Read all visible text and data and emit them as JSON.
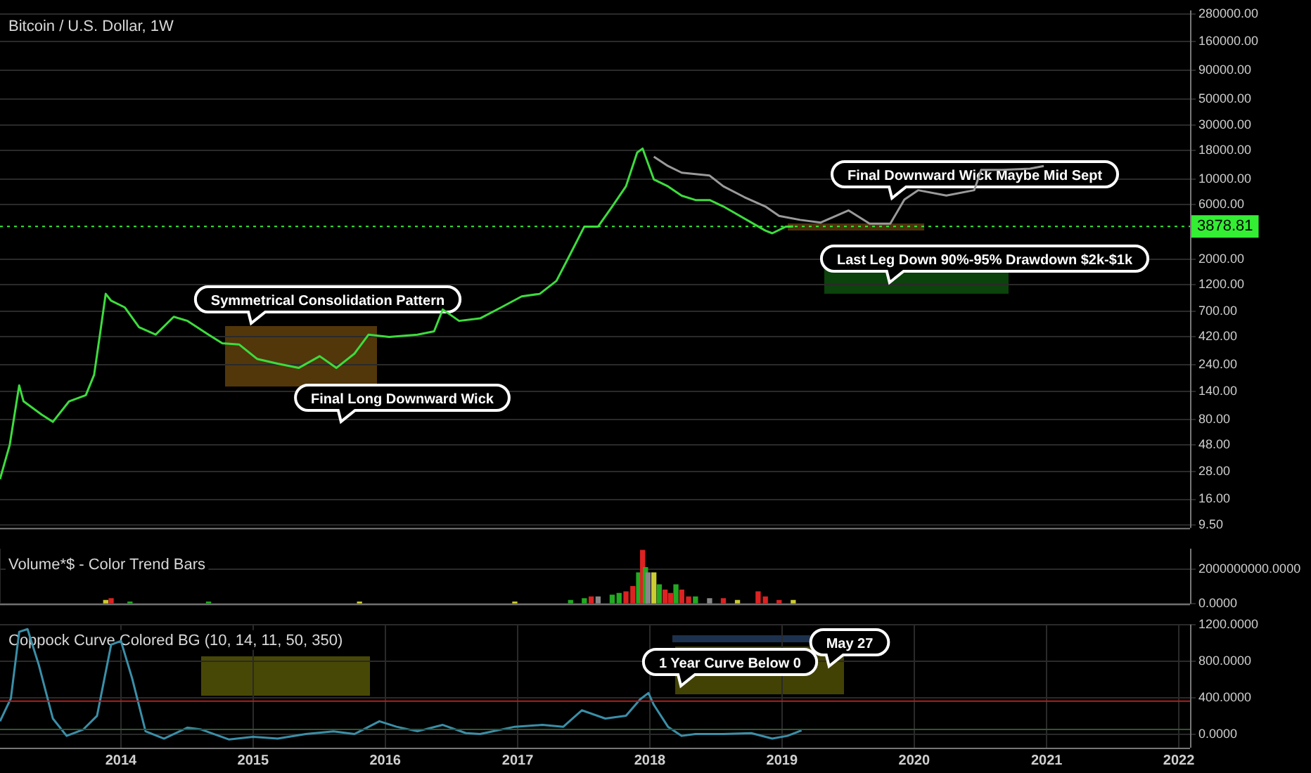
{
  "chart_data": [
    {
      "type": "line",
      "title": "Bitcoin / U.S. Dollar, 1W",
      "log": "y",
      "grid": true,
      "legend": false,
      "tick_labels": "y",
      "xlim": [
        "2013-02-01",
        "2022-02-01"
      ],
      "ylim": [
        9,
        300000
      ],
      "yticks": [
        {
          "value": 9.5,
          "label": "9.50"
        },
        {
          "value": 16,
          "label": "16.00"
        },
        {
          "value": 28,
          "label": "28.00"
        },
        {
          "value": 48,
          "label": "48.00"
        },
        {
          "value": 80,
          "label": "80.00"
        },
        {
          "value": 140,
          "label": "140.00"
        },
        {
          "value": 240,
          "label": "240.00"
        },
        {
          "value": 420,
          "label": "420.00"
        },
        {
          "value": 700,
          "label": "700.00"
        },
        {
          "value": 1200,
          "label": "1200.00"
        },
        {
          "value": 2000,
          "label": "2000.00"
        },
        {
          "value": 6000,
          "label": "6000.00"
        },
        {
          "value": 10000,
          "label": "10000.00"
        },
        {
          "value": 18000,
          "label": "18000.00"
        },
        {
          "value": 30000,
          "label": "30000.00"
        },
        {
          "value": 50000,
          "label": "50000.00"
        },
        {
          "value": 90000,
          "label": "90000.00"
        },
        {
          "value": 160000,
          "label": "160000.00"
        },
        {
          "value": 280000,
          "label": "280000.00"
        }
      ],
      "ref_lines": [
        {
          "axis": "y",
          "value": 3878.81,
          "label": "3878.81",
          "color": "#33ee33",
          "line_style": "dotted"
        }
      ],
      "annotations": [
        "Symmetrical Consolidation Pattern",
        "Final Long Downward Wick",
        "Final Downward Wick Maybe Mid Sept",
        "Last Leg Down 90%-95% Drawdown $2k-$1k"
      ],
      "series": [
        {
          "color": "#3ddc3d",
          "x": [
            "2013-02-01",
            "2013-02-28",
            "2013-03-26",
            "2013-04-07",
            "2013-05-27",
            "2013-06-27",
            "2013-08-11",
            "2013-09-26",
            "2013-10-19",
            "2013-11-04",
            "2013-11-20",
            "2013-12-05",
            "2014-01-12",
            "2014-02-20",
            "2014-04-07",
            "2014-05-27",
            "2014-07-04",
            "2014-08-31",
            "2014-10-08",
            "2014-11-24",
            "2015-01-12",
            "2015-03-10",
            "2015-05-07",
            "2015-07-04",
            "2015-08-19",
            "2015-10-08",
            "2015-11-16",
            "2016-01-12",
            "2016-03-30",
            "2016-05-15",
            "2016-06-08",
            "2016-07-23",
            "2016-09-19",
            "2016-11-16",
            "2017-01-12",
            "2017-03-03",
            "2017-04-18",
            "2017-05-27",
            "2017-07-04",
            "2017-08-11",
            "2017-09-19",
            "2017-10-27",
            "2017-11-27",
            "2017-12-12",
            "2018-01-12",
            "2018-02-20",
            "2018-03-30",
            "2018-05-07",
            "2018-06-15",
            "2018-07-23",
            "2018-11-16",
            "2018-12-05",
            "2019-01-12",
            "2019-02-01"
          ],
          "values": [
            24,
            48,
            158,
            115,
            88,
            76,
            115,
            130,
            196,
            440,
            1000,
            870,
            760,
            510,
            440,
            630,
            580,
            440,
            370,
            360,
            270,
            245,
            225,
            285,
            225,
            300,
            440,
            420,
            440,
            470,
            730,
            580,
            610,
            760,
            950,
            1000,
            1300,
            2250,
            3870,
            3870,
            5800,
            8700,
            17200,
            18600,
            10000,
            8700,
            7200,
            6600,
            6600,
            5800,
            3570,
            3380,
            3870,
            3880
          ]
        },
        {
          "color": "#9a9a9a",
          "x": [
            "2018-01-12",
            "2018-02-20",
            "2018-03-30",
            "2018-06-15",
            "2018-07-23",
            "2018-09-19",
            "2018-11-16",
            "2018-12-24",
            "2019-02-20",
            "2019-04-18",
            "2019-07-04",
            "2019-08-31",
            "2019-10-27",
            "2019-12-05",
            "2020-01-12",
            "2020-03-30",
            "2020-06-15",
            "2020-07-04",
            "2020-08-31",
            "2020-11-16",
            "2020-12-24"
          ],
          "values": [
            15800,
            13100,
            11450,
            10800,
            8700,
            7000,
            5800,
            4800,
            4430,
            4200,
            5360,
            4100,
            4100,
            6660,
            8050,
            7220,
            8050,
            12100,
            12100,
            12400,
            13100
          ]
        }
      ]
    },
    {
      "type": "bar",
      "title": "Volume*$ - Color Trend Bars",
      "grid": true,
      "legend": false,
      "tick_labels": "y",
      "xlim": [
        "2013-02-01",
        "2022-02-01"
      ],
      "ylim": [
        0,
        3200000000
      ],
      "yticks": [
        {
          "value": 0,
          "label": "0.0000"
        },
        {
          "value": 2000000000,
          "label": "2000000000.0000"
        }
      ],
      "series": [
        {
          "x": [
            "2013-11-20",
            "2013-12-05",
            "2014-01-26",
            "2014-08-31",
            "2015-10-22",
            "2016-12-24",
            "2017-05-27",
            "2017-07-04",
            "2017-07-23",
            "2017-08-11",
            "2017-09-19",
            "2017-10-08",
            "2017-10-27",
            "2017-11-15",
            "2017-12-01",
            "2017-12-12",
            "2017-12-20",
            "2017-12-27",
            "2018-01-12",
            "2018-01-27",
            "2018-02-12",
            "2018-02-27",
            "2018-03-14",
            "2018-03-30",
            "2018-04-18",
            "2018-05-07",
            "2018-06-15",
            "2018-07-23",
            "2018-08-31",
            "2018-10-27",
            "2018-11-16",
            "2018-12-24",
            "2019-02-01"
          ],
          "values": [
            200000000,
            300000000,
            100000000,
            100000000,
            100000000,
            100000000,
            200000000,
            300000000,
            400000000,
            400000000,
            500000000,
            600000000,
            700000000,
            1000000000,
            1800000000,
            3100000000,
            2100000000,
            1800000000,
            1800000000,
            1100000000,
            800000000,
            600000000,
            1100000000,
            800000000,
            400000000,
            400000000,
            300000000,
            300000000,
            200000000,
            700000000,
            400000000,
            200000000,
            200000000
          ],
          "colors": [
            "#cccc33",
            "#dd2222",
            "#22aa22",
            "#22aa22",
            "#cccc33",
            "#cccc33",
            "#22aa22",
            "#22aa22",
            "#dd2222",
            "#888888",
            "#22aa22",
            "#22aa22",
            "#dd2222",
            "#dd2222",
            "#22aa22",
            "#dd2222",
            "#22aa22",
            "#888888",
            "#cccc33",
            "#22aa22",
            "#dd2222",
            "#dd2222",
            "#22aa22",
            "#dd2222",
            "#dd2222",
            "#22aa22",
            "#888888",
            "#dd2222",
            "#cccc33",
            "#dd2222",
            "#dd2222",
            "#dd2222",
            "#cccc33"
          ]
        }
      ]
    },
    {
      "type": "line",
      "title": "Coppock Curve Colored BG (10, 14, 11, 50, 350)",
      "grid": true,
      "legend": false,
      "xlim": [
        "2013-02-01",
        "2022-02-01"
      ],
      "xticks": [
        "2014",
        "2015",
        "2016",
        "2017",
        "2018",
        "2019",
        "2020",
        "2021",
        "2022"
      ],
      "ylim": [
        -150,
        1200
      ],
      "yticks": [
        {
          "value": 0,
          "label": "0.0000"
        },
        {
          "value": 400,
          "label": "400.0000"
        },
        {
          "value": 800,
          "label": "800.0000"
        },
        {
          "value": 1200,
          "label": "1200.0000"
        }
      ],
      "ref_lines": [
        {
          "axis": "y",
          "value": 360,
          "color": "#aa2222"
        },
        {
          "axis": "y",
          "value": 50,
          "color": "#335533"
        }
      ],
      "annotations": [
        "1 Year Curve Below 0",
        "May 27"
      ],
      "series": [
        {
          "color": "#3a8fa8",
          "x": [
            "2013-02-01",
            "2013-03-03",
            "2013-03-26",
            "2013-04-18",
            "2013-05-19",
            "2013-06-27",
            "2013-08-04",
            "2013-09-19",
            "2013-10-27",
            "2013-12-05",
            "2014-01-01",
            "2014-02-01",
            "2014-03-10",
            "2014-04-30",
            "2014-07-04",
            "2014-08-11",
            "2014-10-27",
            "2015-01-01",
            "2015-03-10",
            "2015-05-27",
            "2015-08-11",
            "2015-10-08",
            "2015-12-16",
            "2016-02-01",
            "2016-03-30",
            "2016-06-08",
            "2016-08-11",
            "2016-09-19",
            "2016-12-24",
            "2017-03-10",
            "2017-05-07",
            "2017-06-27",
            "2017-08-31",
            "2017-10-27",
            "2017-12-05",
            "2017-12-28",
            "2018-01-12",
            "2018-02-20",
            "2018-03-30",
            "2018-05-07",
            "2018-07-23",
            "2018-10-08",
            "2018-12-05",
            "2019-01-16",
            "2019-02-24"
          ],
          "values": [
            140,
            390,
            1120,
            1150,
            760,
            170,
            -20,
            50,
            200,
            980,
            1020,
            610,
            30,
            -50,
            70,
            50,
            -60,
            -30,
            -50,
            0,
            30,
            0,
            140,
            80,
            30,
            100,
            10,
            0,
            80,
            100,
            80,
            260,
            170,
            200,
            380,
            450,
            320,
            80,
            -20,
            0,
            0,
            10,
            -50,
            -20,
            40
          ]
        }
      ]
    }
  ]
}
